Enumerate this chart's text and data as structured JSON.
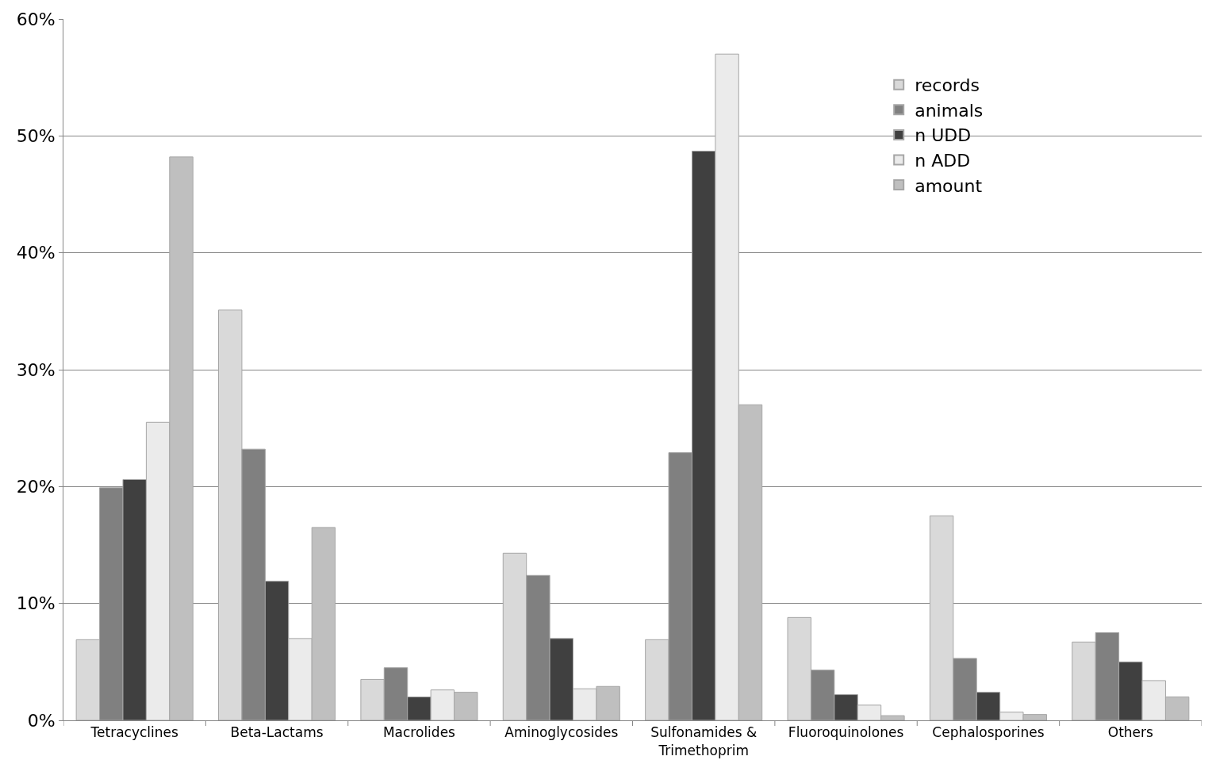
{
  "chart_data": {
    "type": "bar",
    "categories": [
      "Tetracyclines",
      "Beta-Lactams",
      "Macrolides",
      "Aminoglycosides",
      "Sulfonamides & Trimethoprim",
      "Fluoroquinolones",
      "Cephalosporines",
      "Others"
    ],
    "series": [
      {
        "name": "records",
        "color": "#d9d9d9",
        "values": [
          6.9,
          35.1,
          3.5,
          14.3,
          6.9,
          8.8,
          17.5,
          6.7
        ]
      },
      {
        "name": "animals",
        "color": "#808080",
        "values": [
          19.9,
          23.2,
          4.5,
          12.4,
          22.9,
          4.3,
          5.3,
          7.5
        ]
      },
      {
        "name": "n UDD",
        "color": "#404040",
        "values": [
          20.6,
          11.9,
          2.0,
          7.0,
          48.7,
          2.2,
          2.4,
          5.0
        ]
      },
      {
        "name": "n ADD",
        "color": "#ebebeb",
        "values": [
          25.5,
          7.0,
          2.6,
          2.7,
          57.0,
          1.3,
          0.7,
          3.4
        ]
      },
      {
        "name": "amount",
        "color": "#bfbfbf",
        "values": [
          48.2,
          16.5,
          2.4,
          2.9,
          27.0,
          0.4,
          0.5,
          2.0
        ]
      }
    ],
    "ylim": [
      0,
      60
    ],
    "yticks": [
      {
        "value": 0,
        "label": "0%"
      },
      {
        "value": 10,
        "label": "10%"
      },
      {
        "value": 20,
        "label": "20%"
      },
      {
        "value": 30,
        "label": "30%"
      },
      {
        "value": 40,
        "label": "40%"
      },
      {
        "value": 50,
        "label": "50%"
      },
      {
        "value": 60,
        "label": "60%"
      }
    ],
    "grid": "y",
    "legend": "top right"
  }
}
